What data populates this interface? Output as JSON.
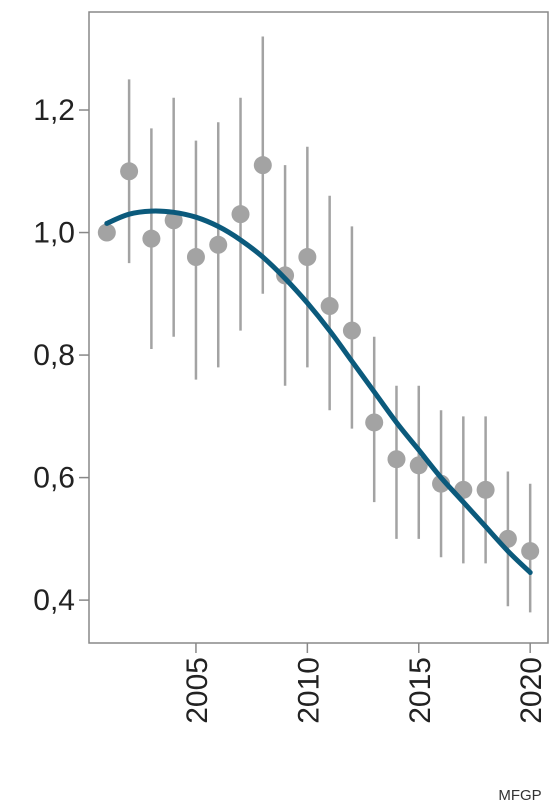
{
  "chart_data": {
    "type": "scatter",
    "title": "",
    "xlabel": "",
    "ylabel": "",
    "xlim": [
      2000.2,
      2020.8
    ],
    "ylim": [
      0.33,
      1.36
    ],
    "x_ticks": [
      2005,
      2010,
      2015,
      2020
    ],
    "x_tick_labels": [
      "2005",
      "2010",
      "2015",
      "2020"
    ],
    "y_ticks": [
      0.4,
      0.6,
      0.8,
      1.0,
      1.2
    ],
    "y_tick_labels": [
      "0,4",
      "0,6",
      "0,8",
      "1,0",
      "1,2"
    ],
    "grid": false,
    "legend": "none",
    "series": [
      {
        "kind": "points-with-error-bars",
        "color": "#a3a3a3",
        "points": [
          {
            "x": 2001,
            "y": 1.0,
            "low": null,
            "high": null
          },
          {
            "x": 2002,
            "y": 1.1,
            "low": 0.95,
            "high": 1.25
          },
          {
            "x": 2003,
            "y": 0.99,
            "low": 0.81,
            "high": 1.17
          },
          {
            "x": 2004,
            "y": 1.02,
            "low": 0.83,
            "high": 1.22
          },
          {
            "x": 2005,
            "y": 0.96,
            "low": 0.76,
            "high": 1.15
          },
          {
            "x": 2006,
            "y": 0.98,
            "low": 0.78,
            "high": 1.18
          },
          {
            "x": 2007,
            "y": 1.03,
            "low": 0.84,
            "high": 1.22
          },
          {
            "x": 2008,
            "y": 1.11,
            "low": 0.9,
            "high": 1.32
          },
          {
            "x": 2009,
            "y": 0.93,
            "low": 0.75,
            "high": 1.11
          },
          {
            "x": 2010,
            "y": 0.96,
            "low": 0.78,
            "high": 1.14
          },
          {
            "x": 2011,
            "y": 0.88,
            "low": 0.71,
            "high": 1.06
          },
          {
            "x": 2012,
            "y": 0.84,
            "low": 0.68,
            "high": 1.01
          },
          {
            "x": 2013,
            "y": 0.69,
            "low": 0.56,
            "high": 0.83
          },
          {
            "x": 2014,
            "y": 0.63,
            "low": 0.5,
            "high": 0.75
          },
          {
            "x": 2015,
            "y": 0.62,
            "low": 0.5,
            "high": 0.75
          },
          {
            "x": 2016,
            "y": 0.59,
            "low": 0.47,
            "high": 0.71
          },
          {
            "x": 2017,
            "y": 0.58,
            "low": 0.46,
            "high": 0.7
          },
          {
            "x": 2018,
            "y": 0.58,
            "low": 0.46,
            "high": 0.7
          },
          {
            "x": 2019,
            "y": 0.5,
            "low": 0.39,
            "high": 0.61
          },
          {
            "x": 2020,
            "y": 0.48,
            "low": 0.38,
            "high": 0.59
          }
        ]
      },
      {
        "kind": "smooth-line",
        "color": "#0b5a7c",
        "x": [
          2001,
          2002,
          2003,
          2004,
          2005,
          2006,
          2007,
          2008,
          2009,
          2010,
          2011,
          2012,
          2013,
          2014,
          2015,
          2016,
          2017,
          2018,
          2019,
          2020
        ],
        "y": [
          1.015,
          1.03,
          1.035,
          1.033,
          1.025,
          1.01,
          0.988,
          0.96,
          0.925,
          0.885,
          0.84,
          0.79,
          0.74,
          0.69,
          0.645,
          0.6,
          0.56,
          0.52,
          0.48,
          0.445
        ]
      }
    ]
  },
  "credit": "MFGP"
}
